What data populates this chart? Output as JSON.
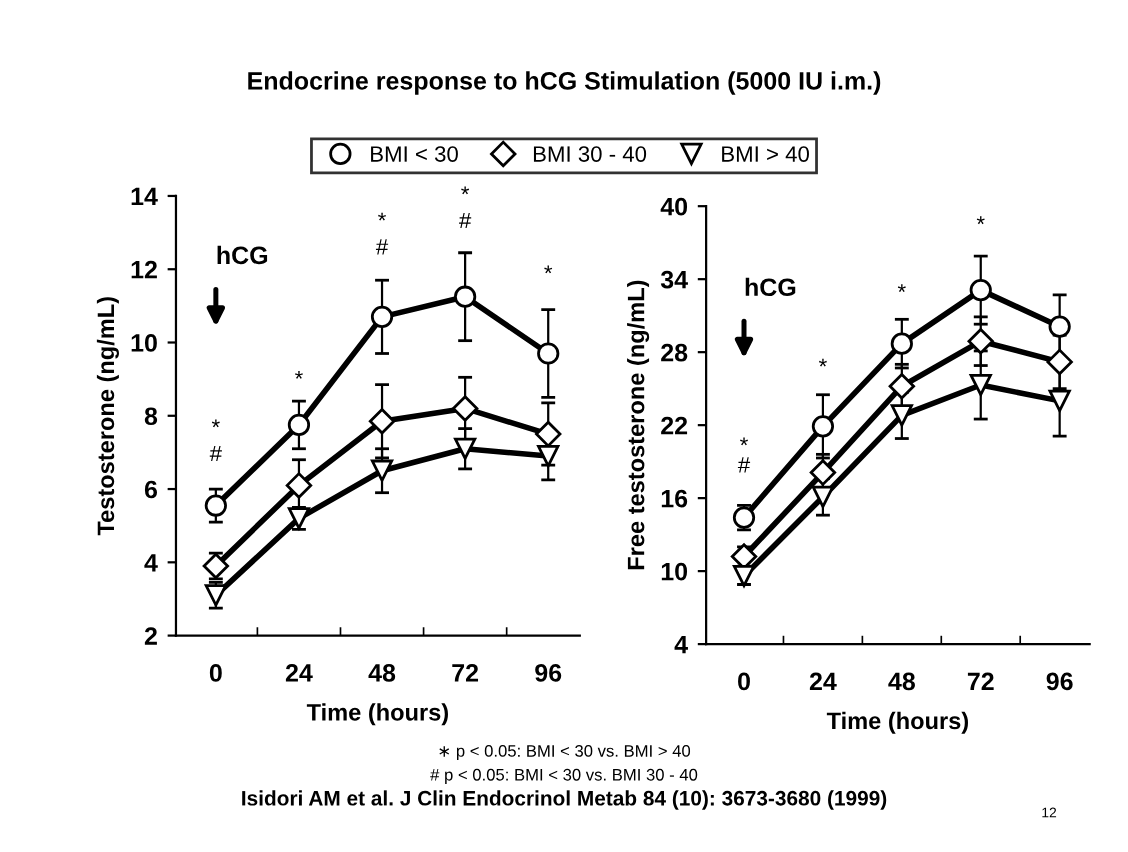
{
  "chart_data": [
    {
      "type": "line",
      "title": "Endocrine response to hCG Stimulation (5000 IU i.m.)",
      "xlabel": "Time (hours)",
      "ylabel": "Testosterone (ng/mL)",
      "categories": [
        "0",
        "24",
        "48",
        "72",
        "96"
      ],
      "ylim": [
        2,
        14
      ],
      "yticks": [
        2,
        4,
        6,
        8,
        10,
        12,
        14
      ],
      "legend": "top",
      "grid": false,
      "series": [
        {
          "name": "BMI < 30",
          "color": "#000000",
          "marker": "circle",
          "values": [
            5.55,
            7.75,
            10.7,
            11.25,
            9.7
          ],
          "errors": [
            0.45,
            0.65,
            1.0,
            1.2,
            1.2
          ]
        },
        {
          "name": "BMI 30 - 40",
          "color": "#000000",
          "marker": "diamond",
          "values": [
            3.9,
            6.1,
            7.85,
            8.2,
            7.5
          ],
          "errors": [
            0.35,
            0.7,
            1.0,
            0.85,
            0.85
          ]
        },
        {
          "name": "BMI > 40",
          "color": "#000000",
          "marker": "triangle",
          "values": [
            3.1,
            5.2,
            6.5,
            7.1,
            6.9
          ],
          "errors": [
            0.35,
            0.3,
            0.6,
            0.55,
            0.65
          ]
        }
      ],
      "annotations": [
        "hCG",
        "*",
        "#",
        "*",
        "*",
        "#",
        "*",
        "#",
        "*"
      ]
    },
    {
      "type": "line",
      "xlabel": "Time (hours)",
      "ylabel": "Free testosterone (ng/mL)",
      "categories": [
        "0",
        "24",
        "48",
        "72",
        "96"
      ],
      "ylim": [
        4,
        40
      ],
      "yticks": [
        4,
        10,
        16,
        22,
        28,
        34,
        40
      ],
      "grid": false,
      "series": [
        {
          "color": "#000000",
          "marker": "circle",
          "values": [
            14.4,
            21.9,
            28.7,
            33.1,
            30.1
          ],
          "errors": [
            1.0,
            2.6,
            2.0,
            2.8,
            2.6
          ]
        },
        {
          "color": "#000000",
          "marker": "diamond",
          "values": [
            11.2,
            18.1,
            25.2,
            28.9,
            27.2
          ],
          "errors": [
            0.8,
            1.5,
            1.8,
            2.0,
            2.2
          ]
        },
        {
          "color": "#000000",
          "marker": "triangle",
          "values": [
            9.6,
            16.1,
            22.8,
            25.3,
            24.0
          ],
          "errors": [
            0.7,
            1.5,
            1.9,
            2.8,
            2.9
          ]
        }
      ],
      "annotations": [
        "hCG",
        "*",
        "#",
        "*",
        "*",
        "*",
        "∗ p < 0.05: BMI < 30 vs. BMI > 40",
        "# p < 0.05: BMI < 30 vs. BMI 30 - 40",
        "Isidori AM et al. J Clin Endocrinol Metab 84 (10): 3673-3680 (1999)",
        "12"
      ]
    }
  ]
}
